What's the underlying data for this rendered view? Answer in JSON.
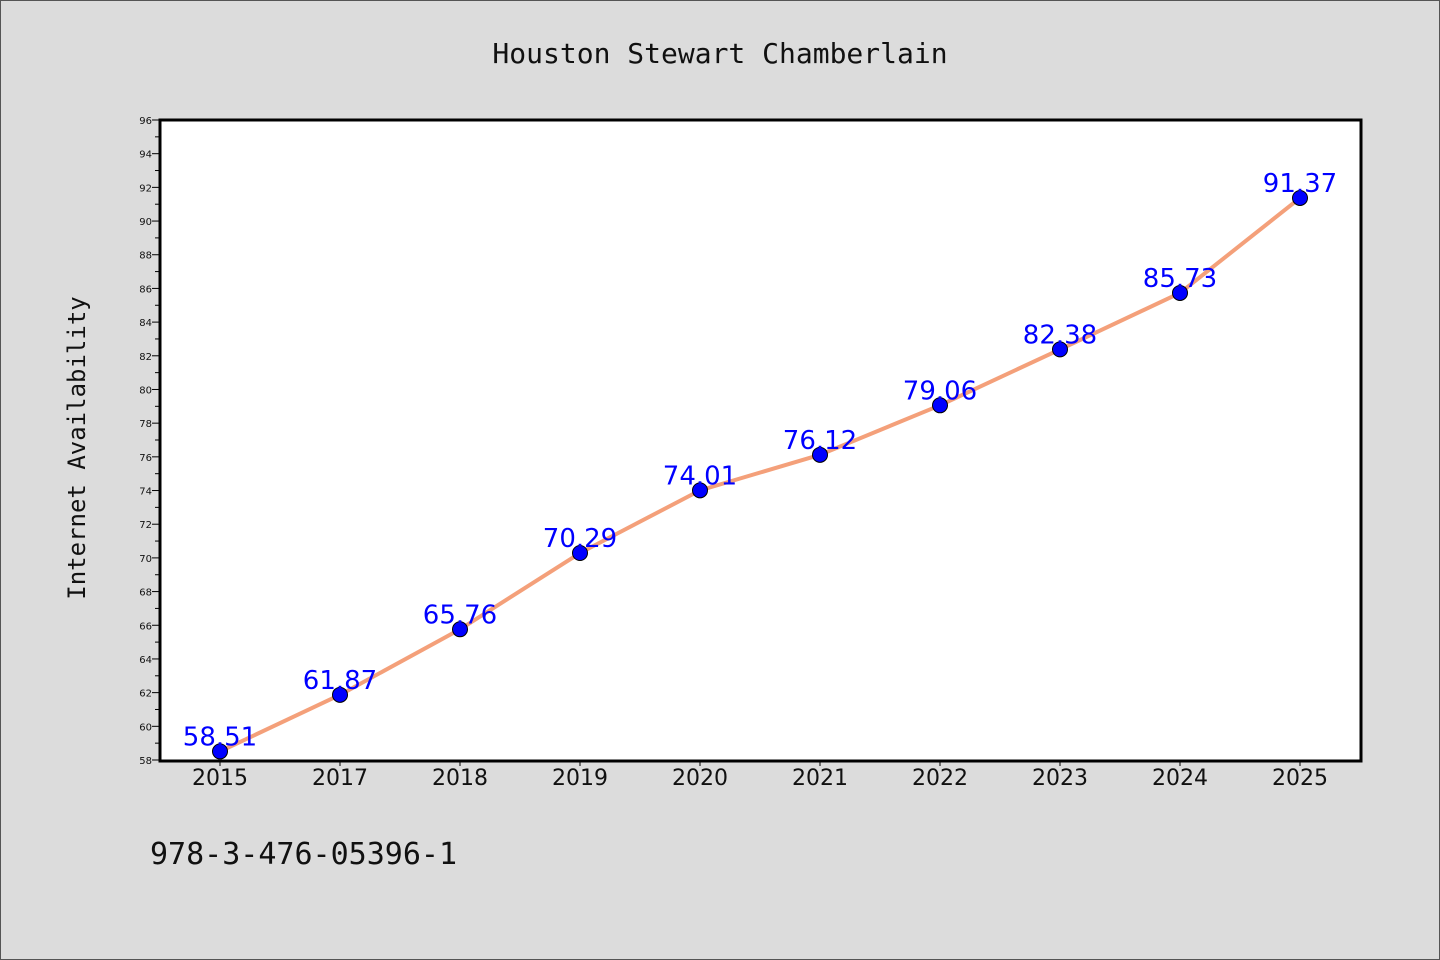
{
  "chart_data": {
    "type": "line",
    "title": "Houston Stewart Chamberlain",
    "xlabel": "",
    "ylabel": "Internet Availability",
    "categories": [
      "2015",
      "2017",
      "2018",
      "2019",
      "2020",
      "2021",
      "2022",
      "2023",
      "2024",
      "2025"
    ],
    "series": [
      {
        "values": [
          58.51,
          61.87,
          65.76,
          70.29,
          74.01,
          76.12,
          79.06,
          82.38,
          85.73,
          91.37
        ],
        "data_labels": [
          "58.51",
          "61.87",
          "65.76",
          "70.29",
          "74.01",
          "76.12",
          "79.06",
          "82.38",
          "85.73",
          "91.37"
        ]
      }
    ],
    "ylim": [
      58,
      96
    ],
    "yticks": [
      "58",
      "60",
      "62",
      "64",
      "66",
      "68",
      "70",
      "72",
      "74",
      "76",
      "78",
      "80",
      "82",
      "84",
      "86",
      "88",
      "90",
      "92",
      "94",
      "96"
    ],
    "grid": false,
    "legend": "none",
    "colors": {
      "line": "#f4a07a",
      "marker": "#0000ff",
      "label": "#0000ff"
    }
  },
  "footer": {
    "isbn": "978-3-476-05396-1"
  }
}
